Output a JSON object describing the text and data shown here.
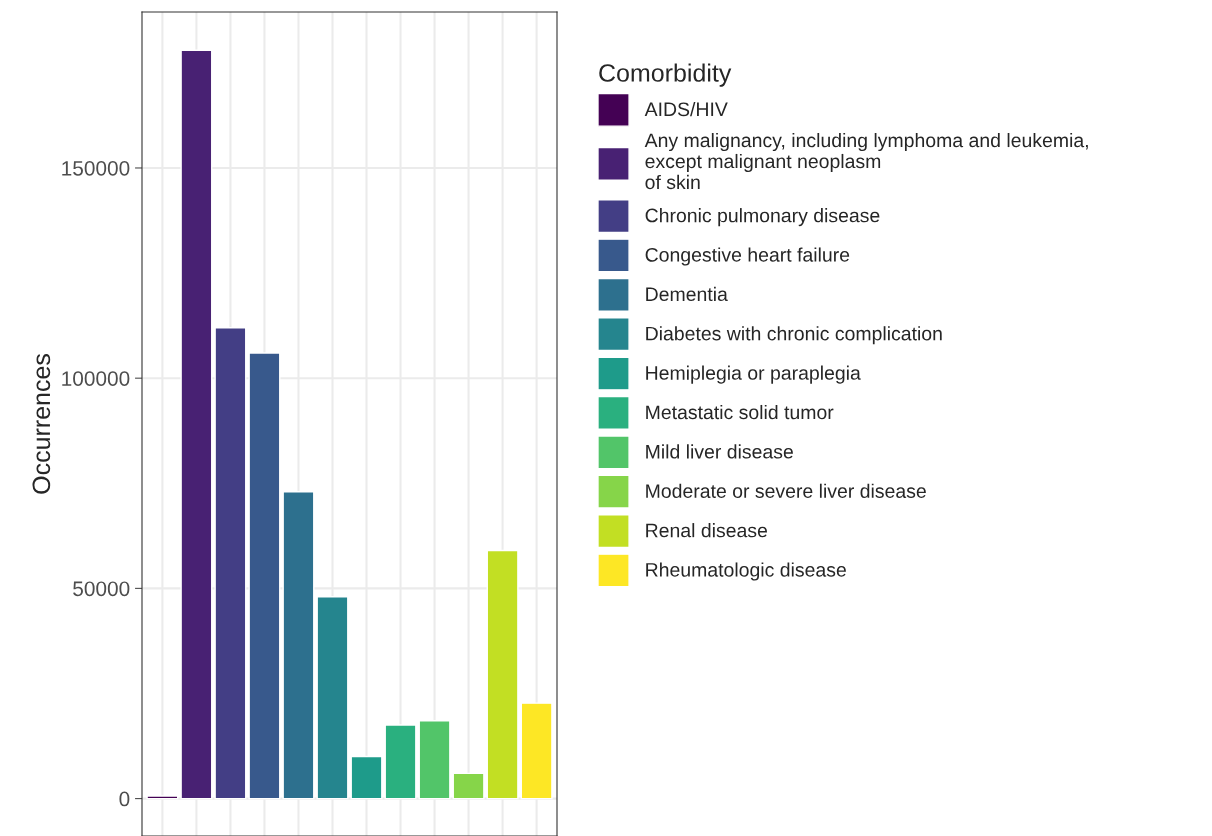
{
  "chart_data": {
    "type": "bar",
    "ylabel": "Occurrences",
    "legend_title": "Comorbidity",
    "categories": [
      null,
      null,
      null,
      null,
      null,
      null,
      null,
      null,
      null,
      null,
      null,
      null
    ],
    "series": [
      {
        "name": "AIDS/HIV",
        "color": "#440154",
        "values": [
          600,
          null,
          null,
          null,
          null,
          null,
          null,
          null,
          null,
          null,
          null,
          null
        ]
      },
      {
        "name": "Any malignancy, including lymphoma and leukemia,\nexcept malignant neoplasm\nof skin",
        "color": "#482173",
        "values": [
          null,
          178000,
          null,
          null,
          null,
          null,
          null,
          null,
          null,
          null,
          null,
          null
        ]
      },
      {
        "name": "Chronic pulmonary disease",
        "color": "#433e85",
        "values": [
          null,
          null,
          112000,
          null,
          null,
          null,
          null,
          null,
          null,
          null,
          null,
          null
        ]
      },
      {
        "name": "Congestive heart failure",
        "color": "#38598c",
        "values": [
          null,
          null,
          null,
          106000,
          null,
          null,
          null,
          null,
          null,
          null,
          null,
          null
        ]
      },
      {
        "name": "Dementia",
        "color": "#2d708e",
        "values": [
          null,
          null,
          null,
          null,
          73000,
          null,
          null,
          null,
          null,
          null,
          null,
          null
        ]
      },
      {
        "name": "Diabetes with chronic complication",
        "color": "#25858e",
        "values": [
          null,
          null,
          null,
          null,
          null,
          48000,
          null,
          null,
          null,
          null,
          null,
          null
        ]
      },
      {
        "name": "Hemiplegia or paraplegia",
        "color": "#1e9b8a",
        "values": [
          null,
          null,
          null,
          null,
          null,
          null,
          10000,
          null,
          null,
          null,
          null,
          null
        ]
      },
      {
        "name": "Metastatic solid tumor",
        "color": "#2ab07f",
        "values": [
          null,
          null,
          null,
          null,
          null,
          null,
          null,
          17500,
          null,
          null,
          null,
          null
        ]
      },
      {
        "name": "Mild liver disease",
        "color": "#52c569",
        "values": [
          null,
          null,
          null,
          null,
          null,
          null,
          null,
          null,
          18500,
          null,
          null,
          null
        ]
      },
      {
        "name": "Moderate or severe liver disease",
        "color": "#86d549",
        "values": [
          null,
          null,
          null,
          null,
          null,
          null,
          null,
          null,
          null,
          6000,
          null,
          null
        ]
      },
      {
        "name": "Renal disease",
        "color": "#c2df23",
        "values": [
          null,
          null,
          null,
          null,
          null,
          null,
          null,
          null,
          null,
          null,
          59000,
          null
        ]
      },
      {
        "name": "Rheumatologic disease",
        "color": "#fde725",
        "values": [
          null,
          null,
          null,
          null,
          null,
          null,
          null,
          null,
          null,
          null,
          null,
          22700
        ]
      }
    ],
    "ylim": [
      -8900,
      187100
    ],
    "yticks": [
      0,
      50000,
      100000,
      150000
    ],
    "grid": true,
    "legend": "right",
    "tick_labels": "y"
  }
}
